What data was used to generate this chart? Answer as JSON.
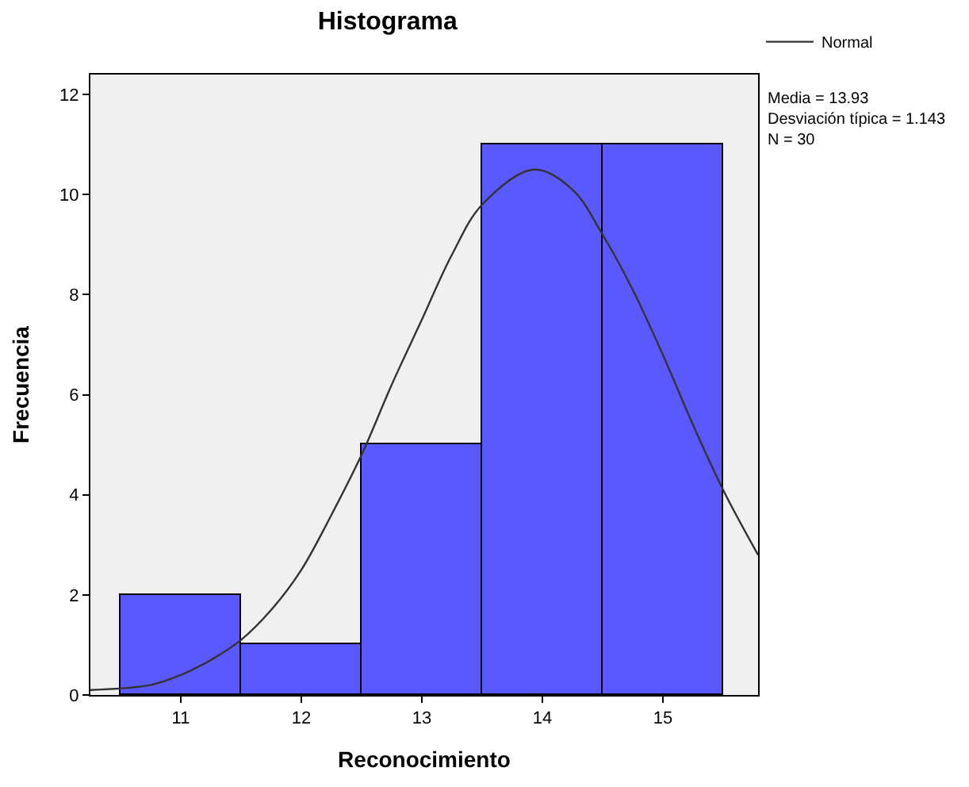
{
  "chart_data": {
    "type": "histogram",
    "title": "Histograma",
    "xlabel": "Reconocimiento",
    "ylabel": "Frecuencia",
    "bins": [
      10.5,
      11.5,
      12.5,
      13.5,
      14.5,
      15.5
    ],
    "values": [
      2,
      1,
      5,
      11,
      11
    ],
    "color": "#5959ff",
    "series": [
      {
        "name": "Normal",
        "type": "line",
        "color": "#333333",
        "x": [
          10.25,
          10.75,
          11.0,
          11.25,
          11.5,
          11.75,
          12.0,
          12.25,
          12.5,
          12.75,
          13.0,
          13.25,
          13.5,
          13.93,
          14.25,
          14.5,
          14.75,
          15.0,
          15.25,
          15.5,
          15.79
        ],
        "values": [
          0.1,
          0.2,
          0.4,
          0.7,
          1.1,
          1.7,
          2.5,
          3.6,
          4.8,
          6.2,
          7.5,
          8.8,
          9.8,
          10.5,
          10.1,
          9.2,
          8.1,
          6.8,
          5.4,
          4.1,
          2.8
        ]
      }
    ],
    "xlim": [
      10.25,
      15.79
    ],
    "ylim": [
      0,
      12.4
    ],
    "xticks": [
      11,
      12,
      13,
      14,
      15
    ],
    "yticks": [
      0,
      2,
      4,
      6,
      8,
      10,
      12
    ],
    "grid": false,
    "legend": "top right",
    "annotations": [
      "Media = 13.93\nDesviación típica = 1.143\nN = 30"
    ]
  }
}
